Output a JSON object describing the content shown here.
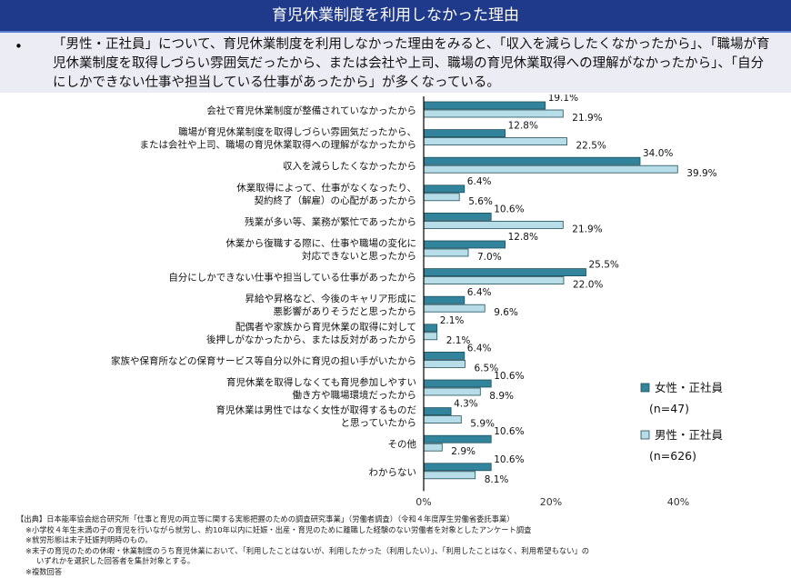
{
  "title": "育児休業制度を利用しなかった理由",
  "summary": {
    "bullet": "•",
    "text": "「男性・正社員」について、育児休業制度を利用しなかった理由をみると、「収入を減らしたくなかったから」、「職場が育児休業制度を取得しづらい雰囲気だったから、または会社や上司、職場の育児休業取得への理解がなかったから」、「自分にしかできない仕事や担当している仕事があったから」が多くなっている。"
  },
  "chart_data": {
    "type": "bar",
    "orientation": "horizontal",
    "categories": [
      [
        "会社で育児休業制度が整備されていなかったから"
      ],
      [
        "職場が育児休業制度を取得しづらい雰囲気だったから、",
        "または会社や上司、職場の育児休業取得への理解がなかったから"
      ],
      [
        "収入を減らしたくなかったから"
      ],
      [
        "休業取得によって、仕事がなくなったり、",
        "契約終了（解雇）の心配があったから"
      ],
      [
        "残業が多い等、業務が繁忙であったから"
      ],
      [
        "休業から復職する際に、仕事や職場の変化に",
        "対応できないと思ったから"
      ],
      [
        "自分にしかできない仕事や担当している仕事があったから"
      ],
      [
        "昇給や昇格など、今後のキャリア形成に",
        "悪影響がありそうだと思ったから"
      ],
      [
        "配偶者や家族から育児休業の取得に対して",
        "後押しがなかったから、または反対があったから"
      ],
      [
        "家族や保育所などの保育サービス等自分以外に育児の担い手がいたから"
      ],
      [
        "育児休業を取得しなくても育児参加しやすい",
        "働き方や職場環境だったから"
      ],
      [
        "育児休業は男性ではなく女性が取得するものだ",
        "と思っていたから"
      ],
      [
        "その他"
      ],
      [
        "わからない"
      ]
    ],
    "series": [
      {
        "name": "女性・正社員",
        "n": "(n=47)",
        "color": "#31849b",
        "values": [
          19.1,
          12.8,
          34.0,
          6.4,
          10.6,
          12.8,
          25.5,
          6.4,
          2.1,
          6.4,
          10.6,
          4.3,
          10.6,
          10.6
        ]
      },
      {
        "name": "男性・正社員",
        "n": "(n=626)",
        "color": "#b7dee8",
        "values": [
          21.9,
          22.5,
          39.9,
          5.6,
          21.9,
          7.0,
          22.0,
          9.6,
          2.1,
          6.5,
          8.9,
          5.9,
          2.9,
          8.1
        ]
      }
    ],
    "xlim": [
      0,
      40
    ],
    "xticks": [
      "0%",
      "20%",
      "40%"
    ],
    "grid": false,
    "legend": "right"
  },
  "notes": [
    "【出典】日本能率協会総合研究所「仕事と育児の両立等に関する実態把握のための調査研究事業」（労働者調査）（令和４年度厚生労働省委託事業）",
    "※小学校４年生未満の子の育児を行いながら就労し、約10年以内に妊娠・出産・育児のために離職した経験のない労働者を対象としたアンケート調査",
    "※就労形態は末子妊娠判明時のもの。",
    "※末子の育児のための休暇・休業制度のうち育児休業において、「利用したことはないが、利用したかった（利用したい）」、「利用したことはなく、利用希望もない」の",
    "いずれかを選択した回答者を集計対象とする。",
    "※複数回答"
  ]
}
